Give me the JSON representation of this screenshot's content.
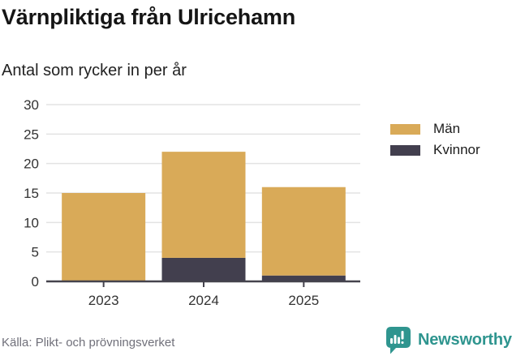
{
  "header": {
    "title": "Värnpliktiga från Ulricehamn",
    "subtitle": "Antal som rycker in per år"
  },
  "chart_data": {
    "type": "bar",
    "stacked": true,
    "title": "Värnpliktiga från Ulricehamn",
    "subtitle": "Antal som rycker in per år",
    "xlabel": "",
    "ylabel": "",
    "categories": [
      "2023",
      "2024",
      "2025"
    ],
    "series": [
      {
        "name": "Män",
        "color": "#d9aa58",
        "values": [
          15,
          18,
          15
        ]
      },
      {
        "name": "Kvinnor",
        "color": "#423f4e",
        "values": [
          0,
          4,
          1
        ]
      }
    ],
    "stack_order": [
      "Kvinnor",
      "Män"
    ],
    "totals": [
      15,
      22,
      16
    ],
    "ylim": [
      0,
      30
    ],
    "yticks": [
      0,
      5,
      10,
      15,
      20,
      25,
      30
    ],
    "grid": true,
    "legend_position": "right"
  },
  "footer": {
    "source": "Källa: Plikt- och prövningsverket",
    "brand": "Newsworthy",
    "brand_color": "#2f958f"
  }
}
